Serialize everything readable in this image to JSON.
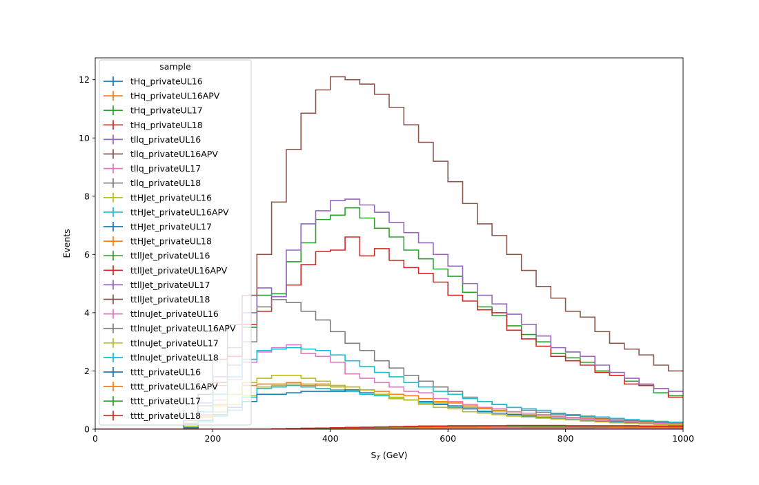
{
  "chart_data": {
    "type": "line",
    "step": true,
    "xlabel": "S",
    "xlabel_sub": "T",
    "xlabel_unit": " (GeV)",
    "ylabel": "Events",
    "xlim": [
      0,
      1000
    ],
    "ylim": [
      0,
      12.75
    ],
    "xticks": [
      0,
      200,
      400,
      600,
      800,
      1000
    ],
    "yticks": [
      0,
      2,
      4,
      6,
      8,
      10,
      12
    ],
    "grid": false,
    "legend": {
      "title": "sample",
      "placement": "upper-left"
    },
    "bin_edges": [
      0,
      25,
      50,
      75,
      100,
      125,
      150,
      175,
      200,
      225,
      250,
      275,
      300,
      325,
      350,
      375,
      400,
      425,
      450,
      475,
      500,
      525,
      550,
      575,
      600,
      625,
      650,
      675,
      700,
      725,
      750,
      775,
      800,
      825,
      850,
      875,
      900,
      925,
      950,
      975,
      1000
    ],
    "series": [
      {
        "name": "tHq_privateUL16",
        "color": "#1f77b4",
        "values": [
          0,
          0,
          0,
          0,
          0,
          0,
          0,
          0,
          0,
          0,
          0,
          0,
          0,
          0.01,
          0.01,
          0.01,
          0.02,
          0.02,
          0.02,
          0.02,
          0.02,
          0.02,
          0.02,
          0.02,
          0.02,
          0.02,
          0.02,
          0.02,
          0.02,
          0.02,
          0.02,
          0.02,
          0.02,
          0.02,
          0.02,
          0.02,
          0.02,
          0.02,
          0.02,
          0.02
        ]
      },
      {
        "name": "tHq_privateUL16APV",
        "color": "#ff7f0e",
        "values": [
          0,
          0,
          0,
          0,
          0,
          0,
          0,
          0,
          0,
          0,
          0,
          0,
          0,
          0.01,
          0.01,
          0.01,
          0.02,
          0.02,
          0.02,
          0.02,
          0.02,
          0.02,
          0.02,
          0.02,
          0.02,
          0.02,
          0.02,
          0.02,
          0.02,
          0.02,
          0.02,
          0.02,
          0.02,
          0.02,
          0.02,
          0.02,
          0.02,
          0.02,
          0.02,
          0.02
        ]
      },
      {
        "name": "tHq_privateUL17",
        "color": "#2ca02c",
        "values": [
          0,
          0,
          0,
          0,
          0,
          0,
          0,
          0,
          0,
          0,
          0,
          0,
          0,
          0.01,
          0.02,
          0.02,
          0.03,
          0.03,
          0.04,
          0.04,
          0.04,
          0.04,
          0.04,
          0.04,
          0.04,
          0.04,
          0.04,
          0.04,
          0.04,
          0.04,
          0.04,
          0.04,
          0.04,
          0.04,
          0.03,
          0.03,
          0.03,
          0.03,
          0.03,
          0.03
        ]
      },
      {
        "name": "tHq_privateUL18",
        "color": "#d62728",
        "values": [
          0,
          0,
          0,
          0,
          0,
          0,
          0,
          0,
          0,
          0,
          0,
          0,
          0,
          0.02,
          0.03,
          0.04,
          0.05,
          0.06,
          0.06,
          0.07,
          0.07,
          0.07,
          0.07,
          0.07,
          0.07,
          0.07,
          0.07,
          0.07,
          0.07,
          0.06,
          0.06,
          0.06,
          0.06,
          0.05,
          0.05,
          0.05,
          0.05,
          0.04,
          0.04,
          0.04
        ]
      },
      {
        "name": "tllq_privateUL16",
        "color": "#9467bd",
        "values": [
          0,
          0,
          0,
          0,
          0,
          0,
          0,
          0,
          0,
          0,
          0,
          0,
          0,
          0.01,
          0.01,
          0.01,
          0.02,
          0.02,
          0.02,
          0.02,
          0.02,
          0.02,
          0.02,
          0.02,
          0.02,
          0.02,
          0.02,
          0.02,
          0.02,
          0.02,
          0.02,
          0.02,
          0.02,
          0.02,
          0.02,
          0.02,
          0.02,
          0.02,
          0.02,
          0.02
        ]
      },
      {
        "name": "tllq_privateUL16APV",
        "color": "#8c564b",
        "values": [
          0,
          0,
          0,
          0,
          0,
          0,
          0,
          0,
          0,
          0,
          0,
          0,
          0,
          0.01,
          0.01,
          0.02,
          0.02,
          0.02,
          0.02,
          0.02,
          0.02,
          0.02,
          0.02,
          0.02,
          0.02,
          0.02,
          0.02,
          0.02,
          0.02,
          0.02,
          0.02,
          0.02,
          0.02,
          0.02,
          0.02,
          0.02,
          0.02,
          0.02,
          0.02,
          0.02
        ]
      },
      {
        "name": "tllq_privateUL17",
        "color": "#e377c2",
        "values": [
          0,
          0,
          0,
          0,
          0,
          0,
          0,
          0,
          0,
          0,
          0,
          0,
          0,
          0.01,
          0.02,
          0.03,
          0.03,
          0.04,
          0.04,
          0.04,
          0.04,
          0.04,
          0.04,
          0.04,
          0.04,
          0.04,
          0.04,
          0.04,
          0.04,
          0.04,
          0.04,
          0.04,
          0.04,
          0.04,
          0.03,
          0.03,
          0.03,
          0.03,
          0.03,
          0.03
        ]
      },
      {
        "name": "tllq_privateUL18",
        "color": "#7f7f7f",
        "values": [
          0,
          0,
          0,
          0,
          0,
          0,
          0,
          0,
          0,
          0,
          0,
          0,
          0,
          0.01,
          0.02,
          0.03,
          0.04,
          0.05,
          0.06,
          0.07,
          0.08,
          0.08,
          0.08,
          0.08,
          0.08,
          0.08,
          0.08,
          0.08,
          0.08,
          0.07,
          0.07,
          0.07,
          0.07,
          0.06,
          0.06,
          0.06,
          0.05,
          0.05,
          0.05,
          0.04
        ]
      },
      {
        "name": "ttHJet_privateUL16",
        "color": "#bcbd22",
        "values": [
          0,
          0,
          0,
          0,
          0,
          0,
          0.05,
          0.3,
          0.6,
          0.85,
          1.15,
          1.45,
          1.5,
          1.55,
          1.55,
          1.5,
          1.45,
          1.35,
          1.25,
          1.2,
          1.1,
          1.0,
          0.95,
          0.9,
          0.8,
          0.75,
          0.7,
          0.62,
          0.55,
          0.5,
          0.45,
          0.42,
          0.38,
          0.35,
          0.3,
          0.27,
          0.25,
          0.22,
          0.2,
          0.18
        ]
      },
      {
        "name": "ttHJet_privateUL16APV",
        "color": "#17becf",
        "values": [
          0,
          0,
          0,
          0,
          0,
          0,
          0.04,
          0.25,
          0.45,
          0.65,
          1.1,
          1.4,
          1.45,
          1.5,
          1.45,
          1.4,
          1.35,
          1.3,
          1.2,
          1.15,
          1.05,
          1.0,
          0.9,
          0.85,
          0.75,
          0.7,
          0.62,
          0.55,
          0.5,
          0.45,
          0.4,
          0.37,
          0.33,
          0.3,
          0.27,
          0.25,
          0.22,
          0.2,
          0.18,
          0.16
        ]
      },
      {
        "name": "ttHJet_privateUL17",
        "color": "#1f77b4",
        "values": [
          0,
          0,
          0,
          0,
          0,
          0,
          0.05,
          0.3,
          0.5,
          0.75,
          0.95,
          1.2,
          1.2,
          1.25,
          1.3,
          1.3,
          1.3,
          1.35,
          1.25,
          1.2,
          1.05,
          1.0,
          0.95,
          0.85,
          0.8,
          0.7,
          0.6,
          0.55,
          0.5,
          0.45,
          0.4,
          0.37,
          0.33,
          0.3,
          0.27,
          0.25,
          0.22,
          0.2,
          0.18,
          0.16
        ]
      },
      {
        "name": "ttHJet_privateUL18",
        "color": "#ff7f0e",
        "values": [
          0,
          0,
          0,
          0,
          0,
          0,
          0.1,
          0.45,
          0.85,
          1.2,
          1.5,
          1.55,
          1.55,
          1.6,
          1.5,
          1.55,
          1.5,
          1.45,
          1.35,
          1.3,
          1.2,
          1.15,
          1.05,
          0.95,
          0.9,
          0.8,
          0.72,
          0.65,
          0.6,
          0.55,
          0.5,
          0.45,
          0.4,
          0.37,
          0.33,
          0.3,
          0.27,
          0.25,
          0.22,
          0.2
        ]
      },
      {
        "name": "ttllJet_privateUL16",
        "color": "#2ca02c",
        "values": [
          0,
          0,
          0,
          0,
          0,
          0,
          0.2,
          0.8,
          1.6,
          2.5,
          3.5,
          4.6,
          4.65,
          5.75,
          6.4,
          7.2,
          7.35,
          7.6,
          7.25,
          6.9,
          6.6,
          6.15,
          5.85,
          5.5,
          5.25,
          4.7,
          4.2,
          3.9,
          3.55,
          3.25,
          3.0,
          2.6,
          2.45,
          2.3,
          2.0,
          1.85,
          1.65,
          1.5,
          1.25,
          1.15
        ]
      },
      {
        "name": "ttllJet_privateUL16APV",
        "color": "#d62728",
        "values": [
          0,
          0,
          0,
          0,
          0,
          0,
          0.2,
          0.8,
          1.6,
          2.5,
          3.6,
          4.05,
          4.55,
          4.95,
          5.65,
          6.1,
          6.15,
          6.6,
          5.95,
          6.2,
          5.8,
          5.55,
          5.35,
          5.05,
          4.6,
          4.4,
          4.1,
          4.0,
          3.4,
          3.1,
          2.85,
          2.5,
          2.35,
          2.2,
          1.95,
          1.85,
          1.55,
          1.5,
          1.4,
          1.1
        ]
      },
      {
        "name": "ttllJet_privateUL17",
        "color": "#9467bd",
        "values": [
          0,
          0,
          0,
          0,
          0,
          0,
          0.2,
          0.9,
          1.8,
          2.8,
          4.0,
          4.85,
          4.55,
          6.15,
          7.05,
          7.5,
          7.85,
          7.9,
          7.7,
          7.45,
          7.1,
          6.75,
          6.4,
          6.0,
          5.6,
          5.0,
          4.6,
          4.3,
          3.95,
          3.6,
          3.2,
          2.8,
          2.65,
          2.5,
          2.2,
          1.95,
          1.75,
          1.55,
          1.4,
          1.3
        ]
      },
      {
        "name": "ttllJet_privateUL18",
        "color": "#8c564b",
        "values": [
          0,
          0,
          0,
          0,
          0,
          0,
          0.3,
          1.2,
          2.4,
          3.6,
          4.6,
          6.0,
          7.8,
          9.6,
          10.85,
          11.65,
          12.1,
          12.0,
          11.85,
          11.5,
          11.05,
          10.45,
          9.85,
          9.2,
          8.5,
          7.75,
          7.05,
          6.65,
          6.0,
          5.45,
          4.9,
          4.5,
          4.05,
          3.85,
          3.35,
          2.95,
          2.75,
          2.55,
          2.2,
          2.0
        ]
      },
      {
        "name": "ttlnuJet_privateUL16",
        "color": "#e377c2",
        "values": [
          0,
          0,
          0,
          0,
          0,
          0,
          0.1,
          0.5,
          1.0,
          1.7,
          2.3,
          2.65,
          2.8,
          2.9,
          2.6,
          2.5,
          2.3,
          1.9,
          1.75,
          1.6,
          1.45,
          1.3,
          1.25,
          1.05,
          0.95,
          0.85,
          0.75,
          0.7,
          0.6,
          0.55,
          0.5,
          0.45,
          0.4,
          0.35,
          0.3,
          0.3,
          0.25,
          0.22,
          0.2,
          0.18
        ]
      },
      {
        "name": "ttlnuJet_privateUL16APV",
        "color": "#7f7f7f",
        "values": [
          0,
          0,
          0,
          0,
          0,
          0,
          0.2,
          0.8,
          1.5,
          2.2,
          3.0,
          4.2,
          4.45,
          4.35,
          4.05,
          3.75,
          3.35,
          2.95,
          2.7,
          2.35,
          2.1,
          1.85,
          1.65,
          1.45,
          1.3,
          1.1,
          0.95,
          0.85,
          0.75,
          0.65,
          0.58,
          0.52,
          0.47,
          0.42,
          0.37,
          0.32,
          0.3,
          0.27,
          0.24,
          0.22
        ]
      },
      {
        "name": "ttlnuJet_privateUL17",
        "color": "#bcbd22",
        "values": [
          0,
          0,
          0,
          0,
          0,
          0,
          0.1,
          0.4,
          0.8,
          1.2,
          1.6,
          1.75,
          1.85,
          1.85,
          1.75,
          1.65,
          1.5,
          1.45,
          1.35,
          1.2,
          1.05,
          1.0,
          0.85,
          0.75,
          0.7,
          0.6,
          0.55,
          0.5,
          0.45,
          0.42,
          0.38,
          0.35,
          0.32,
          0.28,
          0.25,
          0.22,
          0.2,
          0.18,
          0.16,
          0.15
        ]
      },
      {
        "name": "ttlnuJet_privateUL18",
        "color": "#17becf",
        "values": [
          0,
          0,
          0,
          0,
          0,
          0,
          0.15,
          0.6,
          1.2,
          1.8,
          2.4,
          2.7,
          2.75,
          2.8,
          2.75,
          2.7,
          2.55,
          2.35,
          2.15,
          1.95,
          1.8,
          1.6,
          1.45,
          1.3,
          1.2,
          1.05,
          0.95,
          0.85,
          0.75,
          0.7,
          0.65,
          0.55,
          0.5,
          0.45,
          0.42,
          0.37,
          0.33,
          0.3,
          0.27,
          0.24
        ]
      },
      {
        "name": "tttt_privateUL16",
        "color": "#1f77b4",
        "values": [
          0,
          0,
          0,
          0,
          0,
          0,
          0,
          0,
          0,
          0,
          0,
          0,
          0.01,
          0.01,
          0.02,
          0.02,
          0.03,
          0.03,
          0.04,
          0.04,
          0.05,
          0.05,
          0.06,
          0.06,
          0.07,
          0.07,
          0.08,
          0.08,
          0.08,
          0.08,
          0.08,
          0.08,
          0.08,
          0.08,
          0.08,
          0.08,
          0.07,
          0.07,
          0.07,
          0.07
        ]
      },
      {
        "name": "tttt_privateUL16APV",
        "color": "#ff7f0e",
        "values": [
          0,
          0,
          0,
          0,
          0,
          0,
          0,
          0,
          0,
          0,
          0,
          0,
          0.01,
          0.01,
          0.02,
          0.02,
          0.03,
          0.03,
          0.04,
          0.04,
          0.05,
          0.05,
          0.06,
          0.06,
          0.07,
          0.07,
          0.07,
          0.08,
          0.08,
          0.08,
          0.08,
          0.08,
          0.08,
          0.08,
          0.08,
          0.07,
          0.07,
          0.07,
          0.07,
          0.07
        ]
      },
      {
        "name": "tttt_privateUL17",
        "color": "#2ca02c",
        "values": [
          0,
          0,
          0,
          0,
          0,
          0,
          0,
          0,
          0,
          0,
          0,
          0,
          0.01,
          0.02,
          0.03,
          0.03,
          0.04,
          0.05,
          0.06,
          0.07,
          0.08,
          0.08,
          0.09,
          0.1,
          0.1,
          0.1,
          0.11,
          0.11,
          0.11,
          0.11,
          0.11,
          0.11,
          0.1,
          0.1,
          0.1,
          0.1,
          0.1,
          0.09,
          0.09,
          0.09
        ]
      },
      {
        "name": "tttt_privateUL18",
        "color": "#d62728",
        "values": [
          0,
          0,
          0,
          0,
          0,
          0,
          0,
          0,
          0,
          0,
          0,
          0,
          0.01,
          0.02,
          0.03,
          0.04,
          0.05,
          0.06,
          0.07,
          0.08,
          0.09,
          0.1,
          0.11,
          0.11,
          0.12,
          0.12,
          0.12,
          0.12,
          0.13,
          0.13,
          0.13,
          0.13,
          0.12,
          0.12,
          0.12,
          0.12,
          0.12,
          0.11,
          0.11,
          0.11
        ]
      }
    ]
  }
}
